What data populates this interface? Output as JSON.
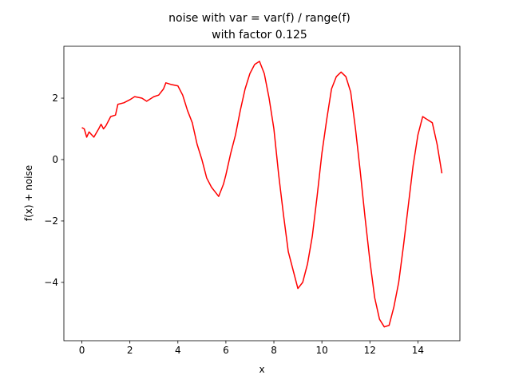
{
  "chart_data": {
    "type": "line",
    "title": [
      "noise with var = var(f) / range(f)",
      "with factor 0.125"
    ],
    "xlabel": "x",
    "ylabel": "f(x) + noise",
    "x": [
      0,
      0.1,
      0.2,
      0.3,
      0.5,
      0.7,
      0.8,
      0.9,
      1.0,
      1.2,
      1.4,
      1.5,
      1.75,
      2.0,
      2.2,
      2.5,
      2.7,
      3.0,
      3.2,
      3.4,
      3.5,
      3.7,
      4.0,
      4.2,
      4.4,
      4.6,
      4.8,
      5.0,
      5.2,
      5.4,
      5.6,
      5.7,
      5.9,
      6.0,
      6.2,
      6.4,
      6.6,
      6.8,
      7.0,
      7.2,
      7.4,
      7.6,
      7.8,
      8.0,
      8.2,
      8.4,
      8.6,
      8.8,
      9.0,
      9.2,
      9.4,
      9.6,
      9.8,
      10.0,
      10.2,
      10.4,
      10.6,
      10.8,
      11.0,
      11.2,
      11.4,
      11.6,
      11.8,
      12.0,
      12.2,
      12.4,
      12.6,
      12.8,
      13.0,
      13.2,
      13.4,
      13.6,
      13.8,
      14.0,
      14.2,
      14.4,
      14.6,
      14.8,
      15.0
    ],
    "series": [
      {
        "name": "f(x) + noise",
        "color": "#ff0000",
        "values": [
          1.04,
          1.0,
          0.73,
          0.9,
          0.73,
          1.0,
          1.15,
          1.0,
          1.1,
          1.4,
          1.45,
          1.8,
          1.85,
          1.95,
          2.05,
          2.0,
          1.9,
          2.05,
          2.1,
          2.3,
          2.5,
          2.45,
          2.4,
          2.1,
          1.6,
          1.2,
          0.5,
          0.0,
          -0.6,
          -0.9,
          -1.1,
          -1.2,
          -0.8,
          -0.5,
          0.2,
          0.8,
          1.6,
          2.3,
          2.8,
          3.1,
          3.2,
          2.8,
          2.0,
          1.0,
          -0.5,
          -1.8,
          -3.0,
          -3.6,
          -4.2,
          -4.0,
          -3.4,
          -2.5,
          -1.2,
          0.2,
          1.3,
          2.3,
          2.7,
          2.85,
          2.7,
          2.2,
          1.0,
          -0.4,
          -1.9,
          -3.3,
          -4.5,
          -5.2,
          -5.45,
          -5.4,
          -4.8,
          -4.0,
          -2.8,
          -1.5,
          -0.2,
          0.8,
          1.4,
          1.3,
          1.2,
          0.5,
          -0.45
        ]
      }
    ],
    "xlim": [
      -0.75,
      15.75
    ],
    "ylim": [
      -5.9,
      3.69
    ],
    "xticks": [
      0,
      2,
      4,
      6,
      8,
      10,
      12,
      14
    ],
    "yticks": [
      {
        "value": -4,
        "label": "−4"
      },
      {
        "value": -2,
        "label": "−2"
      },
      0,
      2
    ],
    "grid": false
  }
}
